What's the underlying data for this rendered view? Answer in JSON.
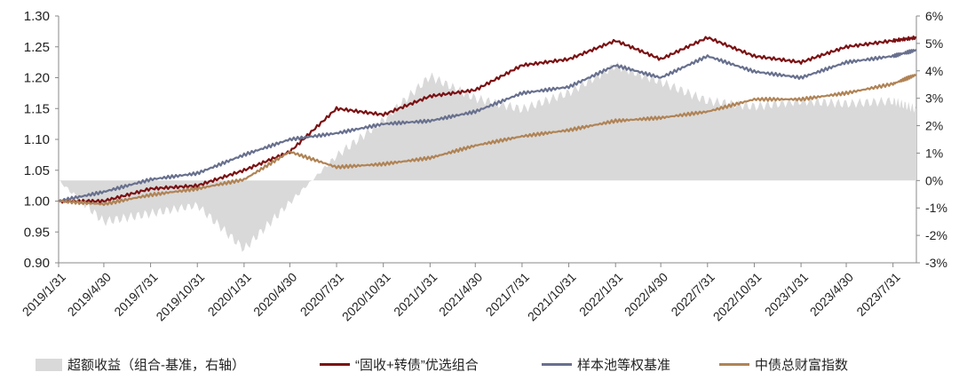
{
  "chart_data": {
    "type": "line",
    "x_dates": [
      "2019/1/31",
      "2019/4/30",
      "2019/7/31",
      "2019/10/31",
      "2020/1/31",
      "2020/4/30",
      "2020/7/31",
      "2020/10/31",
      "2021/1/31",
      "2021/4/30",
      "2021/7/31",
      "2021/10/31",
      "2022/1/31",
      "2022/4/30",
      "2022/7/31",
      "2022/10/31",
      "2023/1/31",
      "2023/4/30",
      "2023/7/31",
      "2023/9/15"
    ],
    "x_tick_labels": [
      "2019/1/31",
      "2019/4/30",
      "2019/7/31",
      "2019/10/31",
      "2020/1/31",
      "2020/4/30",
      "2020/7/31",
      "2020/10/31",
      "2021/1/31",
      "2021/4/30",
      "2021/7/31",
      "2021/10/31",
      "2022/1/31",
      "2022/4/30",
      "2022/7/31",
      "2022/10/31",
      "2023/1/31",
      "2023/4/30",
      "2023/7/31"
    ],
    "y_left": {
      "ticks": [
        "1.30",
        "1.25",
        "1.20",
        "1.15",
        "1.10",
        "1.05",
        "1.00",
        "0.95",
        "0.90"
      ],
      "ylim": [
        0.9,
        1.3
      ]
    },
    "y_right": {
      "ticks": [
        "6%",
        "5%",
        "4%",
        "3%",
        "2%",
        "1%",
        "0%",
        "-1%",
        "-2%",
        "-3%"
      ],
      "ylim": [
        -3,
        6
      ]
    },
    "legend_position": "bottom",
    "series": [
      {
        "name": "超额收益（组合-基准，右轴）",
        "type": "area",
        "axis": "right",
        "color": "#d9d9d9",
        "values": [
          0.0,
          -1.5,
          -1.2,
          -0.9,
          -2.5,
          -0.8,
          0.9,
          2.2,
          3.8,
          3.0,
          2.6,
          3.2,
          4.2,
          3.6,
          2.9,
          2.7,
          2.9,
          2.8,
          2.9,
          2.6
        ]
      },
      {
        "name": "“固收+转债”优选组合",
        "type": "line",
        "axis": "left",
        "color": "#7b1113",
        "values": [
          1.0,
          1.0,
          1.02,
          1.025,
          1.05,
          1.08,
          1.15,
          1.14,
          1.17,
          1.18,
          1.22,
          1.23,
          1.26,
          1.23,
          1.265,
          1.235,
          1.225,
          1.25,
          1.26,
          1.265
        ]
      },
      {
        "name": "样本池等权基准",
        "type": "line",
        "axis": "left",
        "color": "#68708e",
        "values": [
          1.0,
          1.015,
          1.035,
          1.045,
          1.075,
          1.1,
          1.11,
          1.125,
          1.13,
          1.145,
          1.175,
          1.185,
          1.22,
          1.2,
          1.235,
          1.21,
          1.2,
          1.225,
          1.235,
          1.245
        ]
      },
      {
        "name": "中债总财富指数",
        "type": "line",
        "axis": "left",
        "color": "#b08355",
        "values": [
          1.0,
          0.995,
          1.01,
          1.02,
          1.035,
          1.08,
          1.055,
          1.06,
          1.07,
          1.09,
          1.105,
          1.115,
          1.13,
          1.135,
          1.145,
          1.165,
          1.165,
          1.175,
          1.19,
          1.205
        ]
      }
    ]
  }
}
